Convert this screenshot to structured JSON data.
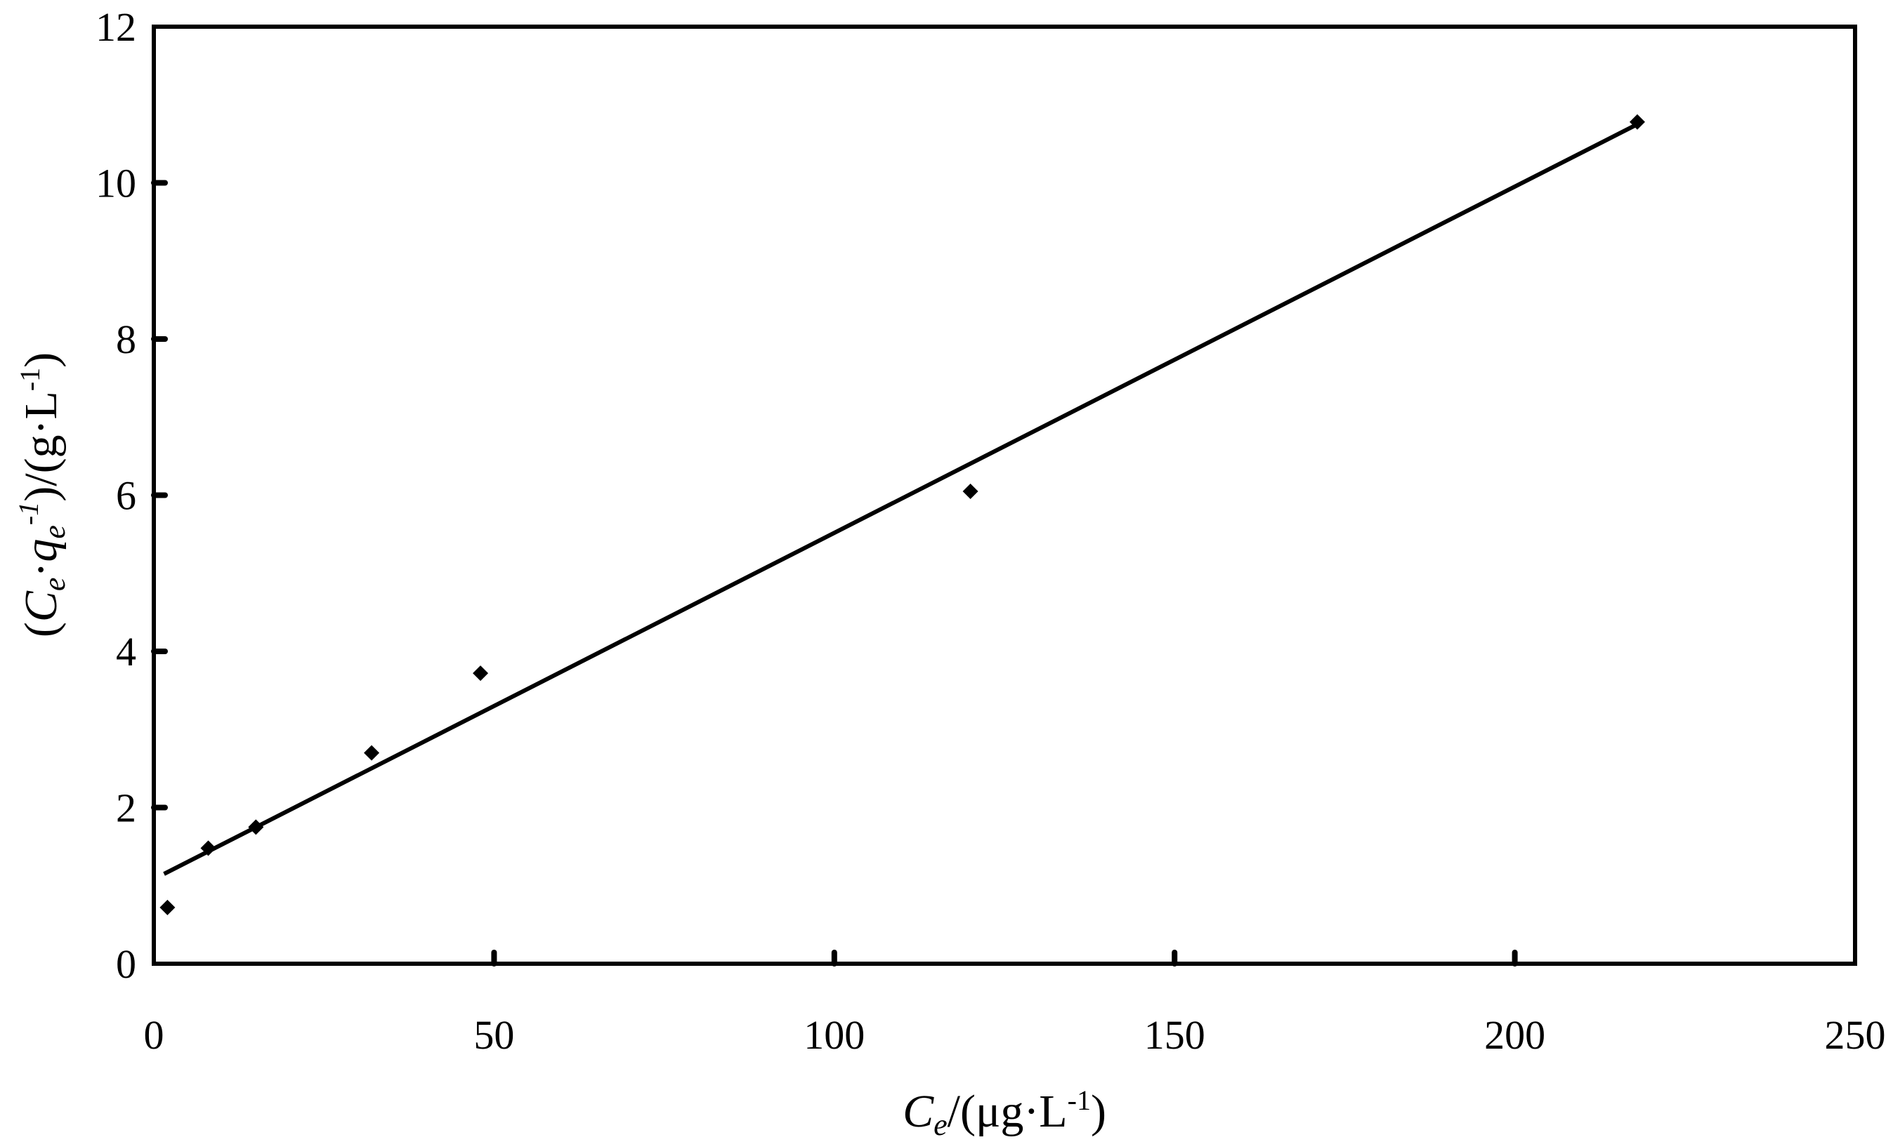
{
  "chart_data": {
    "type": "scatter",
    "title": "",
    "xlabel": {
      "var": "C",
      "sub": "e",
      "rest": "/(μg·L",
      "sup": "-1",
      "close": ")"
    },
    "ylabel": {
      "open": "(",
      "var1": "C",
      "sub1": "e",
      "dot": "·",
      "var2": "q",
      "sub2": "e",
      "sup2": "-1",
      "rest": ")/(g·L",
      "sup3": "-1",
      "close": ")"
    },
    "xlim": [
      0,
      250
    ],
    "ylim": [
      0,
      12
    ],
    "x_ticks": [
      0,
      50,
      100,
      150,
      200,
      250
    ],
    "y_ticks": [
      0,
      2,
      4,
      6,
      8,
      10,
      12
    ],
    "grid": false,
    "marker": "diamond",
    "color": "#000000",
    "points": [
      {
        "x": 2,
        "y": 0.72
      },
      {
        "x": 8,
        "y": 1.48
      },
      {
        "x": 15,
        "y": 1.75
      },
      {
        "x": 32,
        "y": 2.7
      },
      {
        "x": 48,
        "y": 3.72
      },
      {
        "x": 120,
        "y": 6.05
      },
      {
        "x": 218,
        "y": 10.78
      }
    ],
    "trendline": {
      "type": "linear",
      "x": [
        1.5,
        218
      ],
      "y": [
        1.15,
        10.75
      ]
    }
  }
}
